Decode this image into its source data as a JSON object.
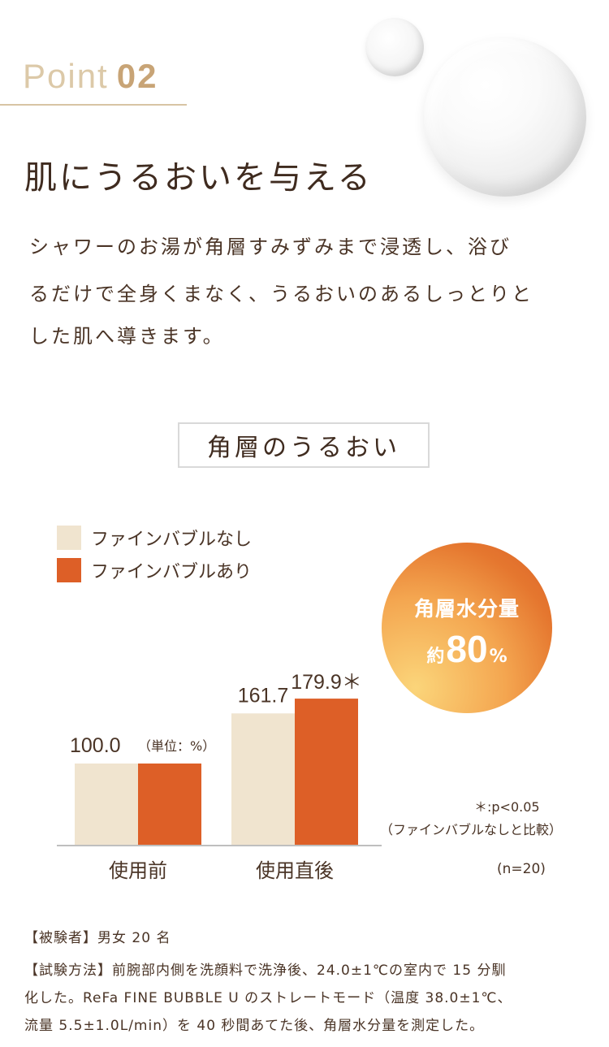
{
  "header": {
    "point_word": "Point",
    "point_number": "02",
    "title": "肌にうるおいを与える",
    "body_lines": [
      "シャワーのお湯が角層すみずみまで浸透し、浴び",
      "るだけで全身くまなく、うるおいのあるしっとりと",
      "した肌へ導きます。"
    ]
  },
  "chart_title": "角層のうるおい",
  "legend": [
    {
      "label": "ファインバブルなし",
      "color": "#f0e4cf"
    },
    {
      "label": "ファインバブルあり",
      "color": "#dd5f27"
    }
  ],
  "badge": {
    "line1": "角層水分量",
    "prefix": "約",
    "value": "80",
    "unit": "%"
  },
  "notes": {
    "significance": "＊:p<0.05",
    "comparison": "（ファインバブルなしと比較）",
    "sample_size": "(n=20)",
    "unit": "（単位：%）"
  },
  "chart_data": {
    "type": "bar",
    "categories": [
      "使用前",
      "使用直後"
    ],
    "series": [
      {
        "name": "ファインバブルなし",
        "values": [
          100.0,
          161.7
        ],
        "labels": [
          "100.0",
          "161.7"
        ],
        "color": "#f0e4cf"
      },
      {
        "name": "ファインバブルあり",
        "values": [
          100.0,
          179.9
        ],
        "labels": [
          "",
          "179.9＊"
        ],
        "color": "#dd5f27"
      }
    ],
    "ylim": [
      0,
      180
    ],
    "grid": false,
    "legend": "top-left"
  },
  "footnotes": [
    "【被験者】男女 20 名",
    "【試験方法】前腕部内側を洗顔料で洗浄後、24.0±1℃の室内で 15 分馴",
    "化した。ReFa FINE BUBBLE U のストレートモード（温度 38.0±1℃、",
    "流量 5.5±1.0L/min）を 40 秒間あてた後、角層水分量を測定した。"
  ]
}
